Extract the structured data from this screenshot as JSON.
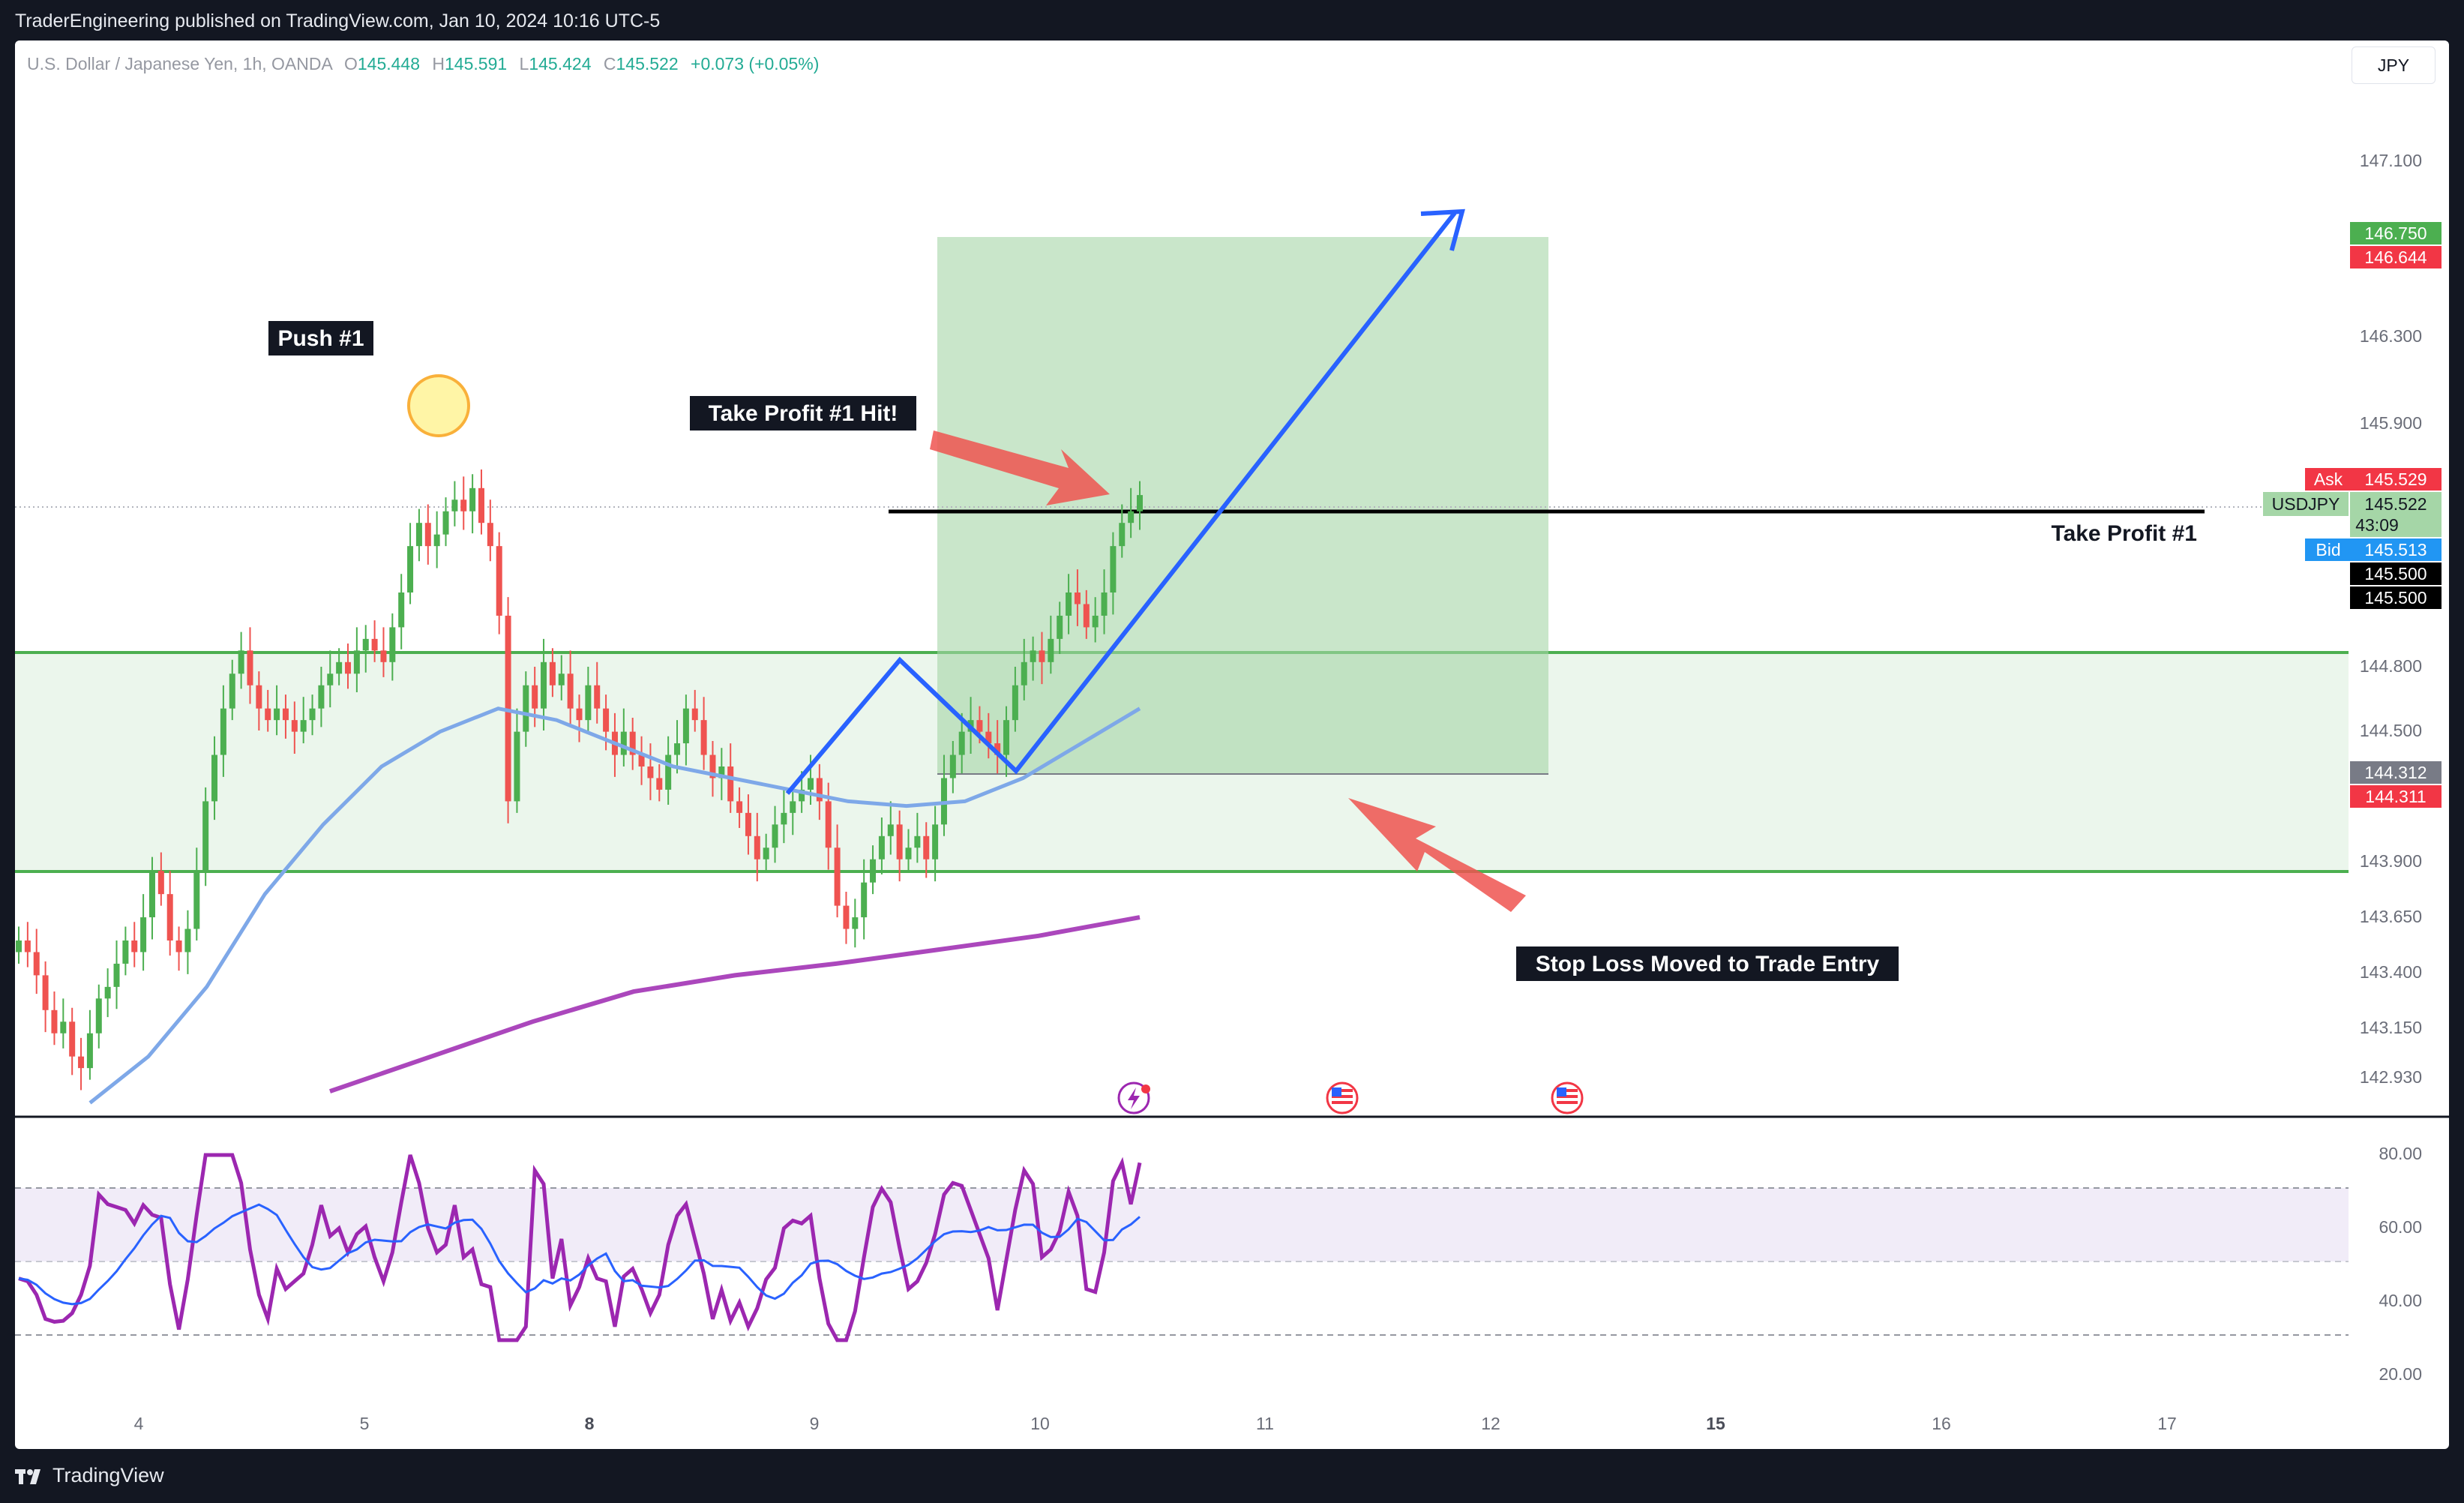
{
  "header": {
    "published_by": "TraderEngineering published on TradingView.com, Jan 10, 2024 10:16 UTC-5"
  },
  "legend": {
    "symbol": "U.S. Dollar / Japanese Yen, 1h, OANDA",
    "o_label": "O",
    "o": "145.448",
    "h_label": "H",
    "h": "145.591",
    "l_label": "L",
    "l": "145.424",
    "c_label": "C",
    "c": "145.522",
    "change": "+0.073 (+0.05%)"
  },
  "currency_button": "JPY",
  "price_axis": {
    "ticks": [
      "147.100",
      "146.300",
      "145.900",
      "144.800",
      "144.500",
      "143.900",
      "143.650",
      "143.400",
      "143.150",
      "142.930"
    ],
    "badges": {
      "tp_price": "146.750",
      "tp_red": "146.644",
      "ask_label": "Ask",
      "ask": "145.529",
      "symbol_label": "USDJPY",
      "last": "145.522",
      "countdown": "43:09",
      "bid_label": "Bid",
      "bid": "145.513",
      "line1": "145.500",
      "line2": "145.500",
      "entry": "144.312",
      "stop": "144.311"
    }
  },
  "rsi_axis": {
    "ticks": [
      "80.00",
      "60.00",
      "40.00",
      "20.00"
    ]
  },
  "time_axis": {
    "ticks": [
      "4",
      "5",
      "8",
      "9",
      "10",
      "11",
      "12",
      "15",
      "16",
      "17"
    ]
  },
  "annotations": {
    "push": "Push #1",
    "tp_hit": "Take Profit #1 Hit!",
    "tp_line": "Take Profit #1",
    "stop_moved": "Stop Loss Moved to Trade Entry"
  },
  "footer": {
    "brand": "TradingView"
  },
  "chart_data": {
    "type": "candlestick",
    "symbol": "USDJPY",
    "timeframe": "1h",
    "close_series": [
      143.6,
      143.55,
      143.45,
      143.3,
      143.2,
      143.25,
      143.1,
      143.05,
      143.2,
      143.35,
      143.4,
      143.5,
      143.6,
      143.55,
      143.7,
      143.9,
      143.8,
      143.6,
      143.55,
      143.65,
      143.9,
      144.2,
      144.4,
      144.6,
      144.75,
      144.85,
      144.7,
      144.6,
      144.55,
      144.6,
      144.55,
      144.5,
      144.55,
      144.6,
      144.7,
      144.75,
      144.8,
      144.75,
      144.85,
      144.9,
      144.85,
      144.8,
      144.95,
      145.1,
      145.3,
      145.4,
      145.3,
      145.35,
      145.45,
      145.5,
      145.45,
      145.55,
      145.4,
      145.3,
      145.0,
      144.2,
      144.5,
      144.7,
      144.6,
      144.8,
      144.7,
      144.75,
      144.6,
      144.55,
      144.7,
      144.6,
      144.5,
      144.4,
      144.5,
      144.4,
      144.35,
      144.3,
      144.25,
      144.4,
      144.45,
      144.6,
      144.55,
      144.4,
      144.3,
      144.35,
      144.2,
      144.15,
      144.05,
      143.95,
      144.0,
      144.1,
      144.15,
      144.2,
      144.25,
      144.3,
      144.2,
      144.0,
      143.75,
      143.65,
      143.7,
      143.85,
      143.95,
      144.05,
      144.1,
      143.95,
      144.0,
      144.05,
      143.95,
      144.1,
      144.3,
      144.4,
      144.5,
      144.55,
      144.5,
      144.45,
      144.4,
      144.55,
      144.7,
      144.8,
      144.85,
      144.8,
      144.9,
      145.0,
      145.1,
      145.05,
      144.95,
      145.0,
      145.1,
      145.3,
      145.4,
      145.45,
      145.52
    ],
    "series": [
      {
        "name": "MA (blue)",
        "values": [
          142.9,
          143.1,
          143.4,
          143.8,
          144.1,
          144.35,
          144.5,
          144.6,
          144.55,
          144.45,
          144.35,
          144.3,
          144.25,
          144.2,
          144.18,
          144.2,
          144.3,
          144.45,
          144.6
        ]
      },
      {
        "name": "MA (purple)",
        "values": [
          142.95,
          143.1,
          143.25,
          143.38,
          143.45,
          143.5,
          143.56,
          143.62,
          143.7
        ]
      }
    ],
    "rsi": {
      "overbought": 70,
      "middle": 50,
      "oversold": 30,
      "last": 76,
      "ylim": [
        15,
        85
      ]
    },
    "zones": {
      "support_resistance_band": [
        143.85,
        144.85
      ],
      "long_position": {
        "entry": 144.312,
        "target": 146.75,
        "stop": 144.311
      },
      "take_profit_1": 145.5
    },
    "ylim": [
      142.85,
      147.35
    ],
    "x_ticks": [
      "4",
      "5",
      "8",
      "9",
      "10",
      "11",
      "12",
      "15",
      "16",
      "17"
    ]
  }
}
